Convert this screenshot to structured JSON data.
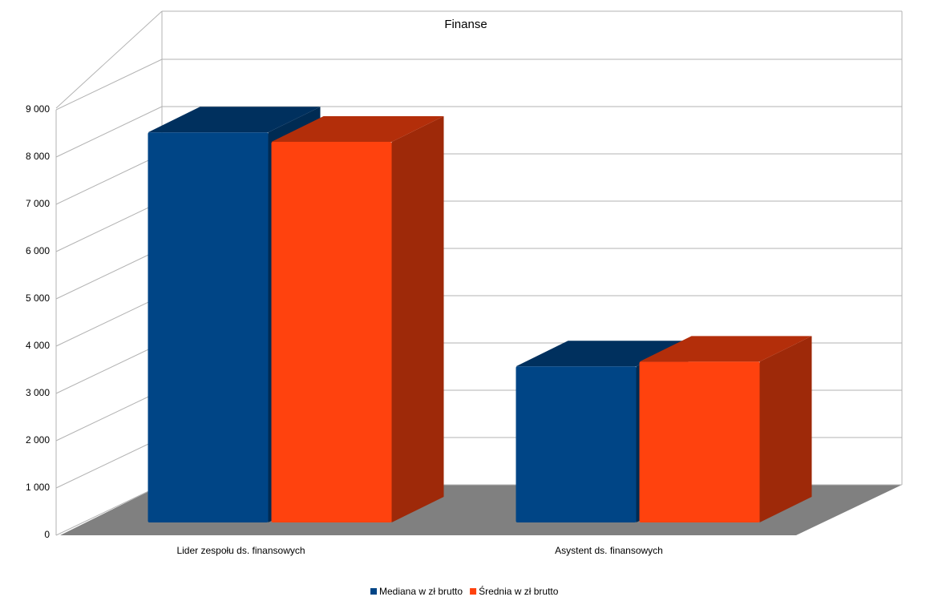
{
  "chart_data": {
    "type": "bar3d",
    "title": "Finanse",
    "categories": [
      "Lider zespołu ds. finansowych",
      "Asystent ds. finansowych"
    ],
    "series": [
      {
        "name": "Mediana w zł brutto",
        "color": "#004586",
        "values": [
          8250,
          3300
        ]
      },
      {
        "name": "Średnia w zł brutto",
        "color": "#ff420e",
        "values": [
          8050,
          3400
        ]
      }
    ],
    "ylim": [
      0,
      9000
    ],
    "yticks": [
      0,
      {
        "value": 1000,
        "label": "1 000"
      },
      {
        "value": 2000,
        "label": "2 000"
      },
      {
        "value": 3000,
        "label": "3 000"
      },
      {
        "value": 4000,
        "label": "4 000"
      },
      {
        "value": 5000,
        "label": "5 000"
      },
      {
        "value": 6000,
        "label": "6 000"
      },
      {
        "value": 7000,
        "label": "7 000"
      },
      {
        "value": 8000,
        "label": "8 000"
      },
      {
        "value": 9000,
        "label": "9 000"
      }
    ],
    "grid": true,
    "legend": "bottom"
  }
}
